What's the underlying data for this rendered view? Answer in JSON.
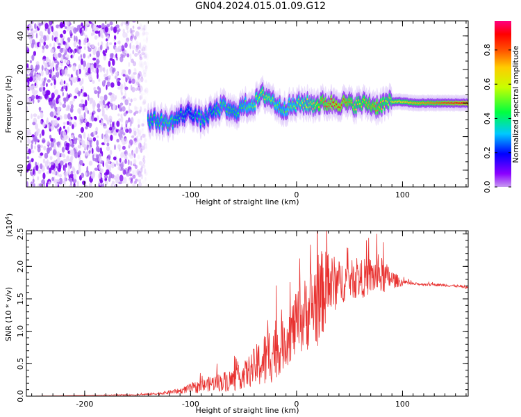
{
  "title": "GN04.2024.015.01.09.G12",
  "chart_data": [
    {
      "type": "heatmap",
      "xlabel": "Height of straight line (km)",
      "ylabel": "Frequency (Hz)",
      "xlim": [
        -255,
        162
      ],
      "ylim": [
        -50,
        49
      ],
      "xticks": [
        -200,
        -100,
        0,
        100
      ],
      "yticks": [
        -40,
        -20,
        0,
        20,
        40
      ],
      "colorbar": {
        "label": "Normalized spectral amplitude",
        "range": [
          0.0,
          0.97
        ],
        "ticks": [
          0.0,
          0.2,
          0.4,
          0.6,
          0.8
        ],
        "colormap": "rainbow (purple-blue-cyan-green-yellow-orange-red-magenta)"
      },
      "ridge": {
        "description": "frequency of peak spectral amplitude vs height",
        "x": [
          -135,
          -120,
          -110,
          -100,
          -90,
          -80,
          -70,
          -60,
          -50,
          -40,
          -32,
          -25,
          -15,
          -5,
          5,
          15,
          25,
          35,
          45,
          55,
          65,
          75,
          85,
          95,
          110,
          130,
          150,
          162
        ],
        "y": [
          -10,
          -12,
          -8,
          -5,
          -10,
          -6,
          -2,
          -6,
          -2,
          0,
          5,
          3,
          -3,
          -2,
          0,
          -1,
          0,
          0,
          0,
          -1,
          0,
          -2,
          0,
          1,
          0,
          0,
          0,
          0
        ],
        "amplitude": [
          0.45,
          0.5,
          0.4,
          0.35,
          0.45,
          0.4,
          0.5,
          0.45,
          0.5,
          0.55,
          0.65,
          0.6,
          0.5,
          0.55,
          0.6,
          0.65,
          0.8,
          0.9,
          0.85,
          0.7,
          0.75,
          0.8,
          0.7,
          0.7,
          0.75,
          0.8,
          0.9,
          0.95
        ]
      },
      "noise_region": {
        "x_range": [
          -255,
          -140
        ],
        "amplitude_range": [
          0.0,
          0.2
        ]
      }
    },
    {
      "type": "line",
      "xlabel": "Height of straight line (km)",
      "ylabel": "SNR (10 * v/v)",
      "yscale_label": "(x10^4)",
      "xlim": [
        -255,
        162
      ],
      "ylim": [
        0.0,
        2.55
      ],
      "xticks": [
        -200,
        -100,
        0,
        100
      ],
      "yticks": [
        0.0,
        0.5,
        1.0,
        1.5,
        2.0,
        2.5
      ],
      "color": "#e8312f",
      "x": [
        -255,
        -200,
        -150,
        -130,
        -110,
        -100,
        -90,
        -80,
        -70,
        -60,
        -50,
        -40,
        -30,
        -20,
        -15,
        -10,
        0,
        10,
        20,
        30,
        40,
        50,
        60,
        70,
        80,
        90,
        100,
        110,
        130,
        150,
        162
      ],
      "y": [
        0.0,
        0.01,
        0.02,
        0.04,
        0.08,
        0.12,
        0.15,
        0.2,
        0.22,
        0.25,
        0.32,
        0.45,
        0.55,
        0.75,
        0.7,
        0.9,
        1.1,
        1.3,
        1.5,
        1.7,
        1.75,
        1.8,
        1.8,
        1.85,
        1.85,
        1.8,
        1.75,
        1.73,
        1.72,
        1.7,
        1.67
      ],
      "spread": [
        0.0,
        0.0,
        0.01,
        0.02,
        0.04,
        0.08,
        0.1,
        0.12,
        0.15,
        0.18,
        0.2,
        0.3,
        0.45,
        0.5,
        0.35,
        0.45,
        0.5,
        0.6,
        0.75,
        0.55,
        0.35,
        0.3,
        0.3,
        0.3,
        0.3,
        0.15,
        0.05,
        0.02,
        0.02,
        0.02,
        0.02
      ]
    }
  ]
}
